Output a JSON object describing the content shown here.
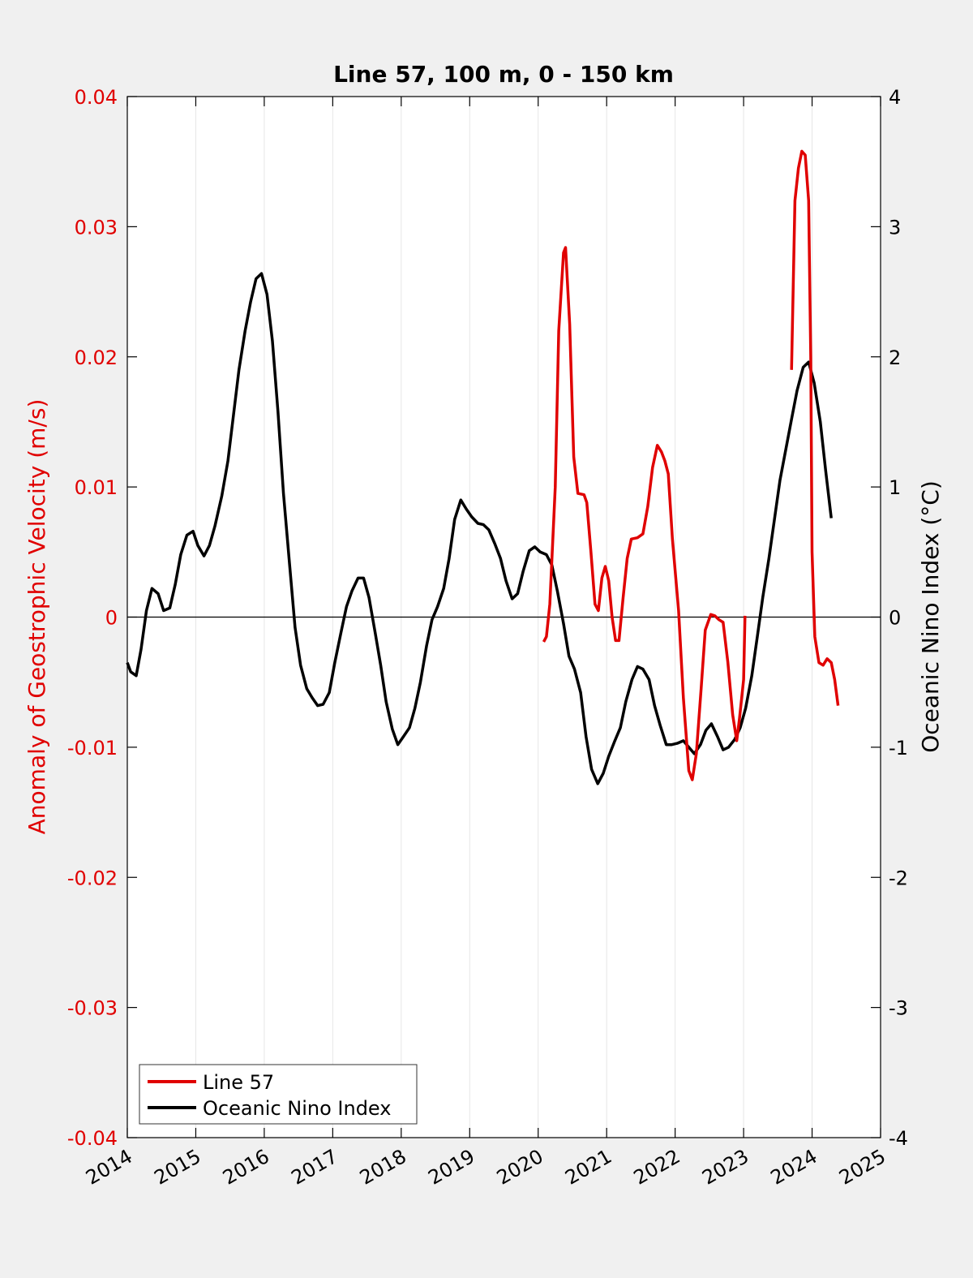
{
  "chart_data": {
    "type": "line",
    "title": "Line 57, 100 m, 0 - 150 km",
    "xlabel": "",
    "ylabel_left": "Anomaly of Geostrophic Velocity (m/s)",
    "ylabel_right": "Oceanic Nino Index (°C)",
    "xlim": [
      2014,
      2025
    ],
    "ylim_left": [
      -0.04,
      0.04
    ],
    "ylim_right": [
      -4,
      4
    ],
    "x_ticks": [
      "2014",
      "2015",
      "2016",
      "2017",
      "2018",
      "2019",
      "2020",
      "2021",
      "2022",
      "2023",
      "2024",
      "2025"
    ],
    "y_ticks_left": [
      "-0.04",
      "-0.03",
      "-0.02",
      "-0.01",
      "0",
      "0.01",
      "0.02",
      "0.03",
      "0.04"
    ],
    "y_ticks_right": [
      "-4",
      "-3",
      "-2",
      "-1",
      "0",
      "1",
      "2",
      "3",
      "4"
    ],
    "grid": "vertical",
    "legend_position": "bottom-left",
    "colors": {
      "line57": "#e00000",
      "oni": "#000000",
      "left_axis": "#e00000",
      "right_axis": "#000000"
    },
    "series": [
      {
        "name": "Line 57",
        "axis": "left",
        "segments": [
          [
            [
              2020.08,
              -0.0019
            ],
            [
              2020.12,
              -0.0015
            ],
            [
              2020.17,
              0.001
            ],
            [
              2020.25,
              0.01
            ],
            [
              2020.3,
              0.022
            ],
            [
              2020.37,
              0.028
            ],
            [
              2020.4,
              0.0284
            ],
            [
              2020.46,
              0.0225
            ],
            [
              2020.52,
              0.0123
            ],
            [
              2020.58,
              0.0095
            ],
            [
              2020.67,
              0.0094
            ],
            [
              2020.71,
              0.0088
            ],
            [
              2020.77,
              0.005
            ],
            [
              2020.83,
              0.001
            ],
            [
              2020.88,
              0.0005
            ],
            [
              2020.93,
              0.003
            ],
            [
              2020.98,
              0.0039
            ],
            [
              2021.03,
              0.0028
            ],
            [
              2021.08,
              0.0
            ],
            [
              2021.13,
              -0.0018
            ],
            [
              2021.18,
              -0.0018
            ],
            [
              2021.24,
              0.0015
            ],
            [
              2021.3,
              0.0045
            ],
            [
              2021.36,
              0.006
            ],
            [
              2021.45,
              0.0061
            ],
            [
              2021.53,
              0.0064
            ],
            [
              2021.6,
              0.0085
            ],
            [
              2021.67,
              0.0115
            ],
            [
              2021.74,
              0.0132
            ],
            [
              2021.8,
              0.0127
            ],
            [
              2021.85,
              0.012
            ],
            [
              2021.9,
              0.011
            ],
            [
              2021.96,
              0.006
            ],
            [
              2022.05,
              0.0005
            ],
            [
              2022.12,
              -0.0062
            ],
            [
              2022.2,
              -0.0118
            ],
            [
              2022.25,
              -0.0125
            ],
            [
              2022.31,
              -0.0105
            ],
            [
              2022.38,
              -0.0055
            ],
            [
              2022.44,
              -0.001
            ],
            [
              2022.52,
              0.0002
            ],
            [
              2022.58,
              0.0001
            ],
            [
              2022.64,
              -0.0002
            ],
            [
              2022.7,
              -0.0004
            ],
            [
              2022.77,
              -0.0035
            ],
            [
              2022.84,
              -0.0075
            ],
            [
              2022.9,
              -0.0095
            ],
            [
              2022.94,
              -0.0078
            ],
            [
              2023.0,
              -0.0048
            ],
            [
              2023.02,
              0.0001
            ]
          ],
          [
            [
              2023.7,
              0.019
            ],
            [
              2023.75,
              0.032
            ],
            [
              2023.8,
              0.0345
            ],
            [
              2023.85,
              0.0358
            ],
            [
              2023.9,
              0.0355
            ],
            [
              2023.95,
              0.032
            ],
            [
              2023.98,
              0.02
            ],
            [
              2024.0,
              0.005
            ],
            [
              2024.04,
              -0.0015
            ],
            [
              2024.1,
              -0.0035
            ],
            [
              2024.16,
              -0.0037
            ],
            [
              2024.22,
              -0.0032
            ],
            [
              2024.28,
              -0.0035
            ],
            [
              2024.33,
              -0.0048
            ],
            [
              2024.38,
              -0.0068
            ]
          ]
        ]
      },
      {
        "name": "Oceanic Nino Index",
        "axis": "right",
        "values": [
          [
            2014.0,
            -0.35
          ],
          [
            2014.05,
            -0.42
          ],
          [
            2014.13,
            -0.45
          ],
          [
            2014.2,
            -0.25
          ],
          [
            2014.28,
            0.05
          ],
          [
            2014.36,
            0.22
          ],
          [
            2014.45,
            0.18
          ],
          [
            2014.53,
            0.05
          ],
          [
            2014.62,
            0.07
          ],
          [
            2014.7,
            0.25
          ],
          [
            2014.78,
            0.48
          ],
          [
            2014.87,
            0.63
          ],
          [
            2014.96,
            0.66
          ],
          [
            2015.03,
            0.55
          ],
          [
            2015.12,
            0.47
          ],
          [
            2015.2,
            0.55
          ],
          [
            2015.28,
            0.7
          ],
          [
            2015.38,
            0.93
          ],
          [
            2015.47,
            1.2
          ],
          [
            2015.55,
            1.55
          ],
          [
            2015.63,
            1.9
          ],
          [
            2015.72,
            2.2
          ],
          [
            2015.8,
            2.42
          ],
          [
            2015.88,
            2.6
          ],
          [
            2015.96,
            2.64
          ],
          [
            2016.04,
            2.48
          ],
          [
            2016.12,
            2.12
          ],
          [
            2016.2,
            1.58
          ],
          [
            2016.28,
            0.95
          ],
          [
            2016.37,
            0.4
          ],
          [
            2016.45,
            -0.08
          ],
          [
            2016.53,
            -0.37
          ],
          [
            2016.62,
            -0.55
          ],
          [
            2016.7,
            -0.62
          ],
          [
            2016.78,
            -0.68
          ],
          [
            2016.86,
            -0.67
          ],
          [
            2016.95,
            -0.58
          ],
          [
            2017.03,
            -0.35
          ],
          [
            2017.12,
            -0.12
          ],
          [
            2017.2,
            0.08
          ],
          [
            2017.28,
            0.2
          ],
          [
            2017.37,
            0.3
          ],
          [
            2017.45,
            0.3
          ],
          [
            2017.53,
            0.15
          ],
          [
            2017.62,
            -0.12
          ],
          [
            2017.7,
            -0.37
          ],
          [
            2017.78,
            -0.65
          ],
          [
            2017.87,
            -0.86
          ],
          [
            2017.95,
            -0.98
          ],
          [
            2018.03,
            -0.92
          ],
          [
            2018.12,
            -0.85
          ],
          [
            2018.2,
            -0.7
          ],
          [
            2018.28,
            -0.5
          ],
          [
            2018.37,
            -0.22
          ],
          [
            2018.45,
            -0.02
          ],
          [
            2018.53,
            0.08
          ],
          [
            2018.62,
            0.22
          ],
          [
            2018.7,
            0.45
          ],
          [
            2018.78,
            0.75
          ],
          [
            2018.87,
            0.9
          ],
          [
            2018.95,
            0.83
          ],
          [
            2019.03,
            0.77
          ],
          [
            2019.12,
            0.72
          ],
          [
            2019.2,
            0.71
          ],
          [
            2019.28,
            0.67
          ],
          [
            2019.37,
            0.56
          ],
          [
            2019.45,
            0.45
          ],
          [
            2019.53,
            0.28
          ],
          [
            2019.62,
            0.14
          ],
          [
            2019.7,
            0.18
          ],
          [
            2019.78,
            0.35
          ],
          [
            2019.87,
            0.51
          ],
          [
            2019.95,
            0.54
          ],
          [
            2020.03,
            0.5
          ],
          [
            2020.12,
            0.48
          ],
          [
            2020.2,
            0.4
          ],
          [
            2020.28,
            0.2
          ],
          [
            2020.37,
            -0.05
          ],
          [
            2020.45,
            -0.3
          ],
          [
            2020.53,
            -0.4
          ],
          [
            2020.62,
            -0.58
          ],
          [
            2020.7,
            -0.92
          ],
          [
            2020.78,
            -1.17
          ],
          [
            2020.87,
            -1.28
          ],
          [
            2020.95,
            -1.2
          ],
          [
            2021.03,
            -1.07
          ],
          [
            2021.12,
            -0.95
          ],
          [
            2021.2,
            -0.85
          ],
          [
            2021.28,
            -0.65
          ],
          [
            2021.37,
            -0.48
          ],
          [
            2021.45,
            -0.38
          ],
          [
            2021.53,
            -0.4
          ],
          [
            2021.62,
            -0.48
          ],
          [
            2021.7,
            -0.68
          ],
          [
            2021.78,
            -0.83
          ],
          [
            2021.87,
            -0.98
          ],
          [
            2021.95,
            -0.98
          ],
          [
            2022.03,
            -0.97
          ],
          [
            2022.12,
            -0.95
          ],
          [
            2022.2,
            -1.0
          ],
          [
            2022.28,
            -1.05
          ],
          [
            2022.37,
            -0.98
          ],
          [
            2022.45,
            -0.87
          ],
          [
            2022.53,
            -0.82
          ],
          [
            2022.62,
            -0.92
          ],
          [
            2022.7,
            -1.02
          ],
          [
            2022.78,
            -1.0
          ],
          [
            2022.87,
            -0.94
          ],
          [
            2022.95,
            -0.85
          ],
          [
            2023.03,
            -0.7
          ],
          [
            2023.12,
            -0.45
          ],
          [
            2023.2,
            -0.15
          ],
          [
            2023.28,
            0.15
          ],
          [
            2023.37,
            0.45
          ],
          [
            2023.45,
            0.75
          ],
          [
            2023.53,
            1.05
          ],
          [
            2023.62,
            1.3
          ],
          [
            2023.7,
            1.52
          ],
          [
            2023.78,
            1.74
          ],
          [
            2023.87,
            1.92
          ],
          [
            2023.95,
            1.96
          ],
          [
            2024.03,
            1.8
          ],
          [
            2024.12,
            1.5
          ],
          [
            2024.2,
            1.12
          ],
          [
            2024.28,
            0.76
          ]
        ]
      }
    ]
  }
}
